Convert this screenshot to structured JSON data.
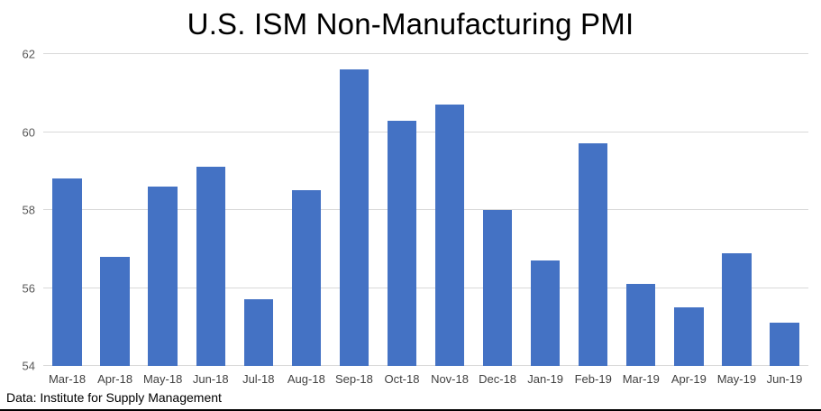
{
  "chart_data": {
    "type": "bar",
    "title": "U.S. ISM Non-Manufacturing PMI",
    "categories": [
      "Mar-18",
      "Apr-18",
      "May-18",
      "Jun-18",
      "Jul-18",
      "Aug-18",
      "Sep-18",
      "Oct-18",
      "Nov-18",
      "Dec-18",
      "Jan-19",
      "Feb-19",
      "Mar-19",
      "Apr-19",
      "May-19",
      "Jun-19"
    ],
    "values": [
      58.8,
      56.8,
      58.6,
      59.1,
      55.7,
      58.5,
      61.6,
      60.3,
      60.7,
      58.0,
      56.7,
      59.7,
      56.1,
      55.5,
      56.9,
      55.1
    ],
    "xlabel": "",
    "ylabel": "",
    "ylim": [
      54,
      62
    ],
    "yticks": [
      54,
      56,
      58,
      60,
      62
    ],
    "grid": true,
    "legend": "none",
    "bar_color": "#4472C4",
    "gridline_color": "#d9d9d9",
    "source_note": "Data: Institute for Supply Management"
  }
}
